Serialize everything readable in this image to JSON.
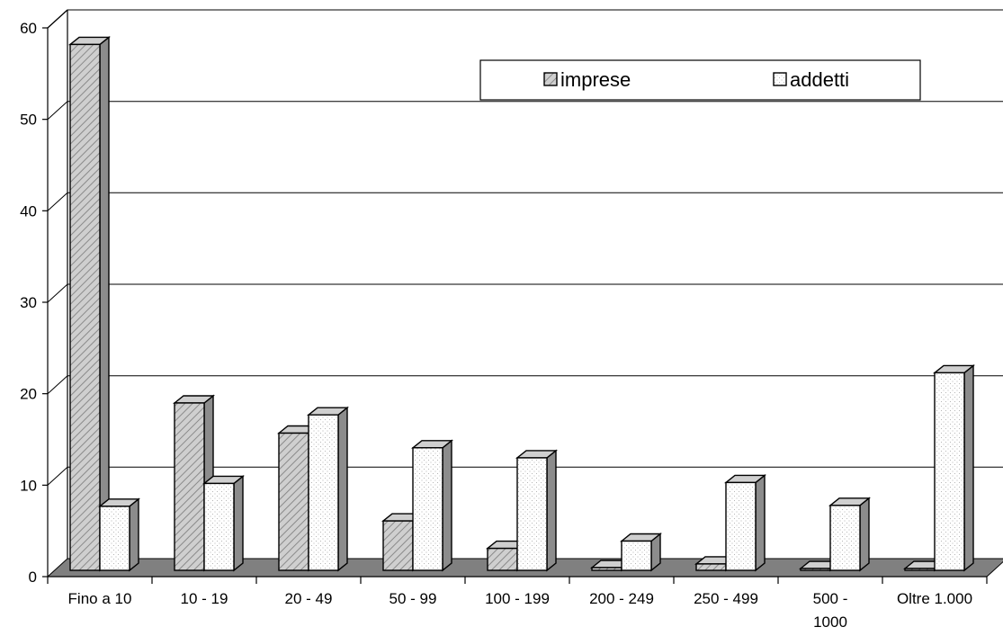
{
  "chart_data": {
    "type": "bar",
    "title": "",
    "xlabel": "",
    "ylabel": "",
    "categories": [
      "Fino a 10",
      "10 - 19",
      "20 -  49",
      "50 -  99",
      "100 - 199",
      "200 - 249",
      "250 - 499",
      "500 - 1000",
      "Oltre 1.000"
    ],
    "series": [
      {
        "name": "imprese",
        "values": [
          57.5,
          18.3,
          15.0,
          5.4,
          2.4,
          0.3,
          0.7,
          0.2,
          0.2
        ]
      },
      {
        "name": "addetti",
        "values": [
          7.0,
          9.5,
          17.0,
          13.4,
          12.3,
          3.2,
          9.6,
          7.1,
          21.6
        ]
      }
    ],
    "ylim": [
      0,
      60
    ],
    "yticks": [
      0,
      10,
      20,
      30,
      40,
      50,
      60
    ],
    "grid": true,
    "legend": "top-right",
    "style": "3d-clustered-column",
    "colors": {
      "imprese_face": "#cfcfcf",
      "imprese_hatch": "#8a8a8a",
      "addetti_face": "#ffffff",
      "addetti_dots": "#b5b5b5",
      "side": "#8c8c8c",
      "top": "#cfcfcf",
      "floor": "#808080",
      "axis": "#000000"
    }
  }
}
